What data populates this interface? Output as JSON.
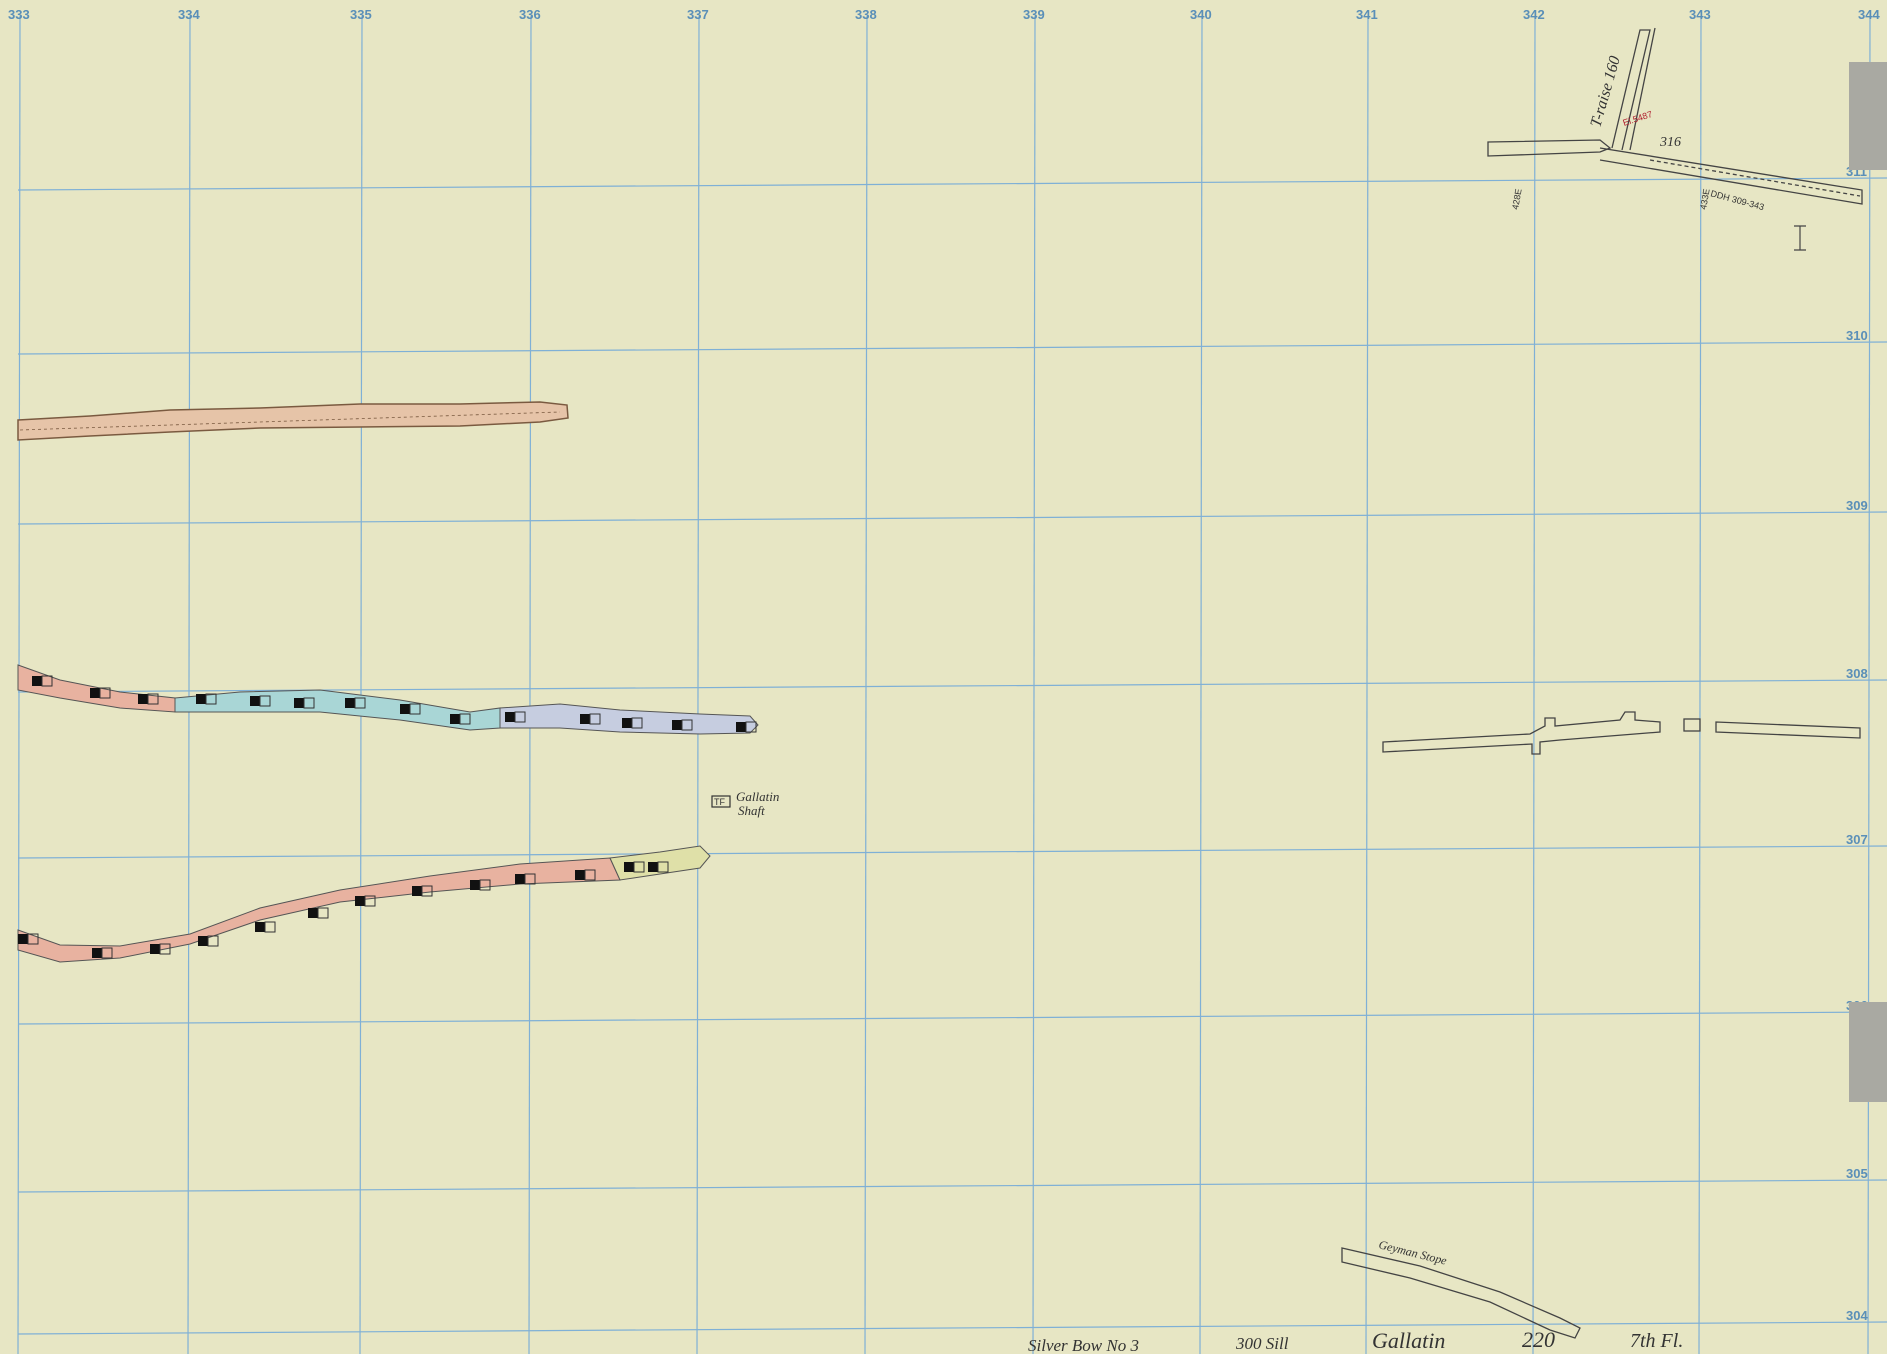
{
  "grid": {
    "x_labels": [
      "333",
      "334",
      "335",
      "336",
      "337",
      "338",
      "339",
      "340",
      "341",
      "342",
      "343",
      "344"
    ],
    "y_labels": [
      "311",
      "310",
      "309",
      "308",
      "307",
      "306",
      "305",
      "304"
    ],
    "line_color": "#7fb0d6",
    "label_color": "#5a8fb8"
  },
  "annotations": {
    "raise_label": "T-raise 160",
    "elevation_label": "El.5487",
    "drift_number": "316",
    "ddh_label": "DDH 309-343",
    "marker_428e": "428E",
    "marker_433e": "433E",
    "gallatin_shaft_line1": "Gallatin",
    "gallatin_shaft_line2": "Shaft",
    "geyman_stope": "Geyman Stope"
  },
  "title_block": {
    "mine": "Silver Bow No 3",
    "sill": "300 Sill",
    "vein": "Gallatin",
    "level": "220",
    "floor": "7th Fl."
  },
  "colors": {
    "paper": "#e7e6c4",
    "stope_red": "#e8b2a0",
    "stope_blue": "#a9d6d6",
    "stope_lavender": "#c6cde0",
    "stope_tan": "#e6c4a8",
    "stope_yellow": "#dfe0a8",
    "tab_gray": "#a9a9a2"
  }
}
